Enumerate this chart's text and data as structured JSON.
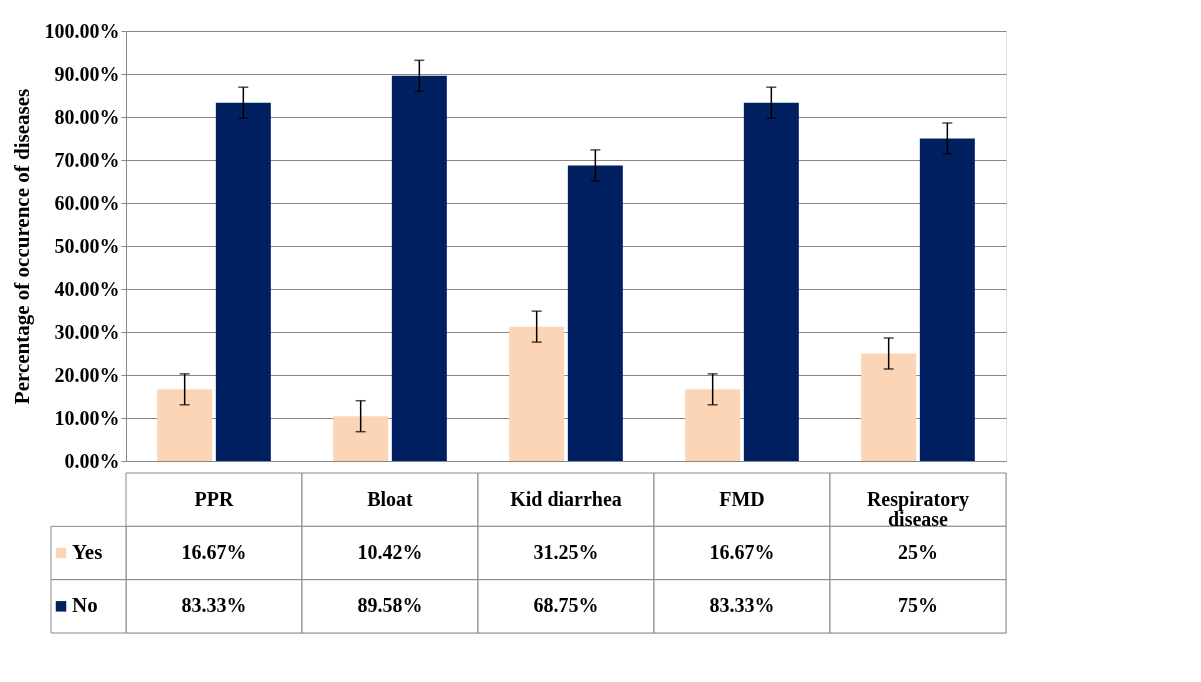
{
  "chart_data": {
    "type": "bar",
    "ylabel": "Percentage of occurence of  diseases",
    "categories": [
      "PPR",
      "Bloat",
      "Kid diarrhea",
      "FMD",
      "Respiratory disease"
    ],
    "series": [
      {
        "name": "Yes",
        "color": "#fbd5b5",
        "values": [
          16.67,
          10.42,
          31.25,
          16.67,
          25
        ],
        "errors": [
          3.6,
          3.6,
          3.6,
          3.6,
          3.6
        ],
        "value_labels": [
          "16.67%",
          "10.42%",
          "31.25%",
          "16.67%",
          "25%"
        ]
      },
      {
        "name": "No",
        "color": "#002060",
        "values": [
          83.33,
          89.58,
          68.75,
          83.33,
          75
        ],
        "errors": [
          3.6,
          3.6,
          3.6,
          3.6,
          3.6
        ],
        "value_labels": [
          "83.33%",
          "89.58%",
          "68.75%",
          "83.33%",
          "75%"
        ]
      }
    ],
    "ylim": [
      0,
      100
    ],
    "yticks": [
      {
        "value": 0,
        "label": "0.00%"
      },
      {
        "value": 10,
        "label": "10.00%"
      },
      {
        "value": 20,
        "label": "20.00%"
      },
      {
        "value": 30,
        "label": "30.00%"
      },
      {
        "value": 40,
        "label": "40.00%"
      },
      {
        "value": 50,
        "label": "50.00%"
      },
      {
        "value": 60,
        "label": "60.00%"
      },
      {
        "value": 70,
        "label": "70.00%"
      },
      {
        "value": 80,
        "label": "80.00%"
      },
      {
        "value": 90,
        "label": "90.00%"
      },
      {
        "value": 100,
        "label": "100.00%"
      }
    ],
    "grid": "y",
    "legend": "bottom left"
  }
}
